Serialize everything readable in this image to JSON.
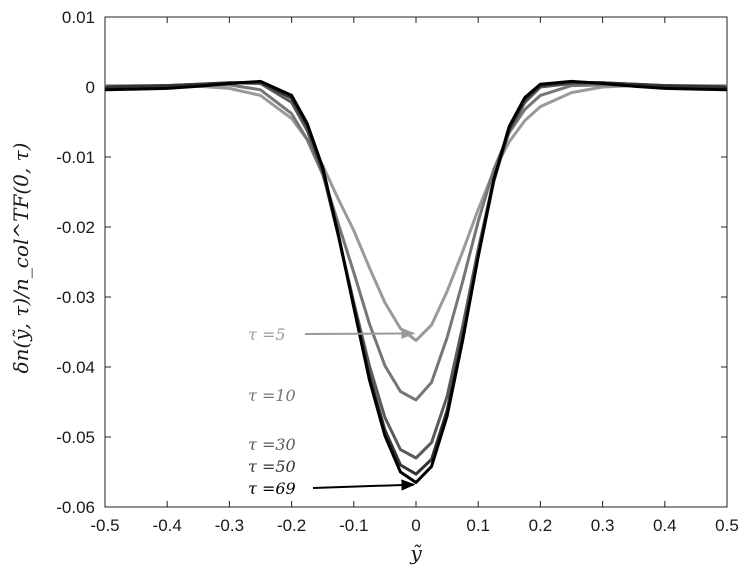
{
  "chart_data": {
    "type": "line",
    "title": "",
    "xlabel": "ỹ",
    "ylabel": "δn(ỹ, τ)/n_col^TF(0, τ)",
    "xlim": [
      -0.5,
      0.5
    ],
    "ylim": [
      -0.06,
      0.01
    ],
    "grid": false,
    "legend": "none",
    "x_ticks": [
      "-0.5",
      "-0.4",
      "-0.3",
      "-0.2",
      "-0.1",
      "0",
      "0.1",
      "0.2",
      "0.3",
      "0.4",
      "0.5"
    ],
    "y_ticks": [
      "0.01",
      "0",
      "-0.01",
      "-0.02",
      "-0.03",
      "-0.04",
      "-0.05",
      "-0.06"
    ],
    "x": [
      -0.5,
      -0.45,
      -0.4,
      -0.35,
      -0.3,
      -0.25,
      -0.2,
      -0.175,
      -0.15,
      -0.125,
      -0.1,
      -0.075,
      -0.05,
      -0.025,
      0,
      0.025,
      0.05,
      0.075,
      0.1,
      0.125,
      0.15,
      0.175,
      0.2,
      0.25,
      0.3,
      0.35,
      0.4,
      0.45,
      0.5
    ],
    "series": [
      {
        "name": "τ =5",
        "color": "#9a9a9a",
        "values": [
          0.0002,
          0.0002,
          0.0002,
          0.0001,
          -0.0002,
          -0.0012,
          -0.0045,
          -0.0075,
          -0.0112,
          -0.016,
          -0.0205,
          -0.0258,
          -0.0308,
          -0.0345,
          -0.0362,
          -0.034,
          -0.0292,
          -0.0235,
          -0.0175,
          -0.012,
          -0.0078,
          -0.0048,
          -0.0028,
          -0.0008,
          0.0,
          0.0002,
          0.0002,
          0.0002,
          0.0002
        ]
      },
      {
        "name": "τ =10",
        "color": "#767676",
        "values": [
          0.0,
          0.0001,
          0.0002,
          0.0003,
          0.0003,
          -0.0004,
          -0.0038,
          -0.0075,
          -0.0125,
          -0.0195,
          -0.0265,
          -0.0338,
          -0.0398,
          -0.0435,
          -0.0447,
          -0.0422,
          -0.0358,
          -0.0278,
          -0.0192,
          -0.0118,
          -0.0065,
          -0.0032,
          -0.0012,
          0.0002,
          0.0003,
          0.0002,
          0.0001,
          0.0,
          0.0
        ]
      },
      {
        "name": "τ =30",
        "color": "#5a5a5a",
        "values": [
          0.0,
          0.0001,
          0.0002,
          0.0004,
          0.0006,
          0.0005,
          -0.0022,
          -0.0062,
          -0.0122,
          -0.0212,
          -0.0308,
          -0.0398,
          -0.0472,
          -0.0518,
          -0.053,
          -0.0508,
          -0.0442,
          -0.0342,
          -0.0232,
          -0.0132,
          -0.0062,
          -0.0022,
          0.0,
          0.0005,
          0.0006,
          0.0004,
          0.0002,
          0.0001,
          0.0
        ]
      },
      {
        "name": "τ =50",
        "color": "#333333",
        "values": [
          0.0,
          0.0001,
          0.0002,
          0.0004,
          0.0006,
          0.0007,
          -0.0016,
          -0.0055,
          -0.0118,
          -0.0212,
          -0.0312,
          -0.0412,
          -0.049,
          -0.054,
          -0.0553,
          -0.0532,
          -0.0462,
          -0.0358,
          -0.0242,
          -0.0135,
          -0.006,
          -0.0018,
          0.0002,
          0.0007,
          0.0006,
          0.0004,
          0.0002,
          0.0001,
          0.0
        ]
      },
      {
        "name": "τ =69",
        "color": "#000000",
        "values": [
          -0.0004,
          -0.0003,
          -0.0002,
          0.0001,
          0.0005,
          0.0008,
          -0.0012,
          -0.0052,
          -0.0115,
          -0.021,
          -0.0315,
          -0.0418,
          -0.0498,
          -0.055,
          -0.0565,
          -0.0542,
          -0.047,
          -0.0362,
          -0.0242,
          -0.0132,
          -0.0056,
          -0.0015,
          0.0004,
          0.0008,
          0.0005,
          0.0001,
          -0.0002,
          -0.0003,
          -0.0004
        ]
      }
    ],
    "annotations": [
      {
        "text": "τ =5",
        "series": "τ =5",
        "arrow_to": {
          "x": 0.0,
          "y": -0.0352
        }
      },
      {
        "text": "τ =10",
        "series": "τ =10"
      },
      {
        "text": "τ =30",
        "series": "τ =30"
      },
      {
        "text": "τ =50",
        "series": "τ =50"
      },
      {
        "text": "τ =69",
        "series": "τ =69",
        "arrow_to": {
          "x": 0.0,
          "y": -0.0568
        }
      }
    ]
  }
}
